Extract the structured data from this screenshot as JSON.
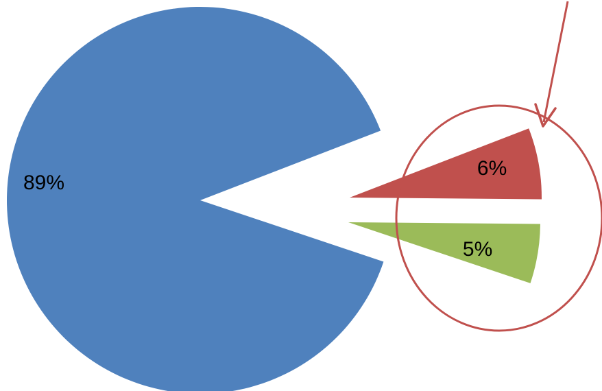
{
  "chart_data": {
    "type": "pie",
    "title": "",
    "exploded": true,
    "slices": [
      {
        "label": "89%",
        "value": 89,
        "color": "#4F81BD"
      },
      {
        "label": "6%",
        "value": 6,
        "color": "#C0504D"
      },
      {
        "label": "5%",
        "value": 5,
        "color": "#9BBB59"
      }
    ],
    "annotations": {
      "highlight_circle_color": "#C0504D",
      "arrow_color": "#C0504D",
      "highlighted_slices": [
        "6%",
        "5%"
      ]
    },
    "legend": "none"
  }
}
